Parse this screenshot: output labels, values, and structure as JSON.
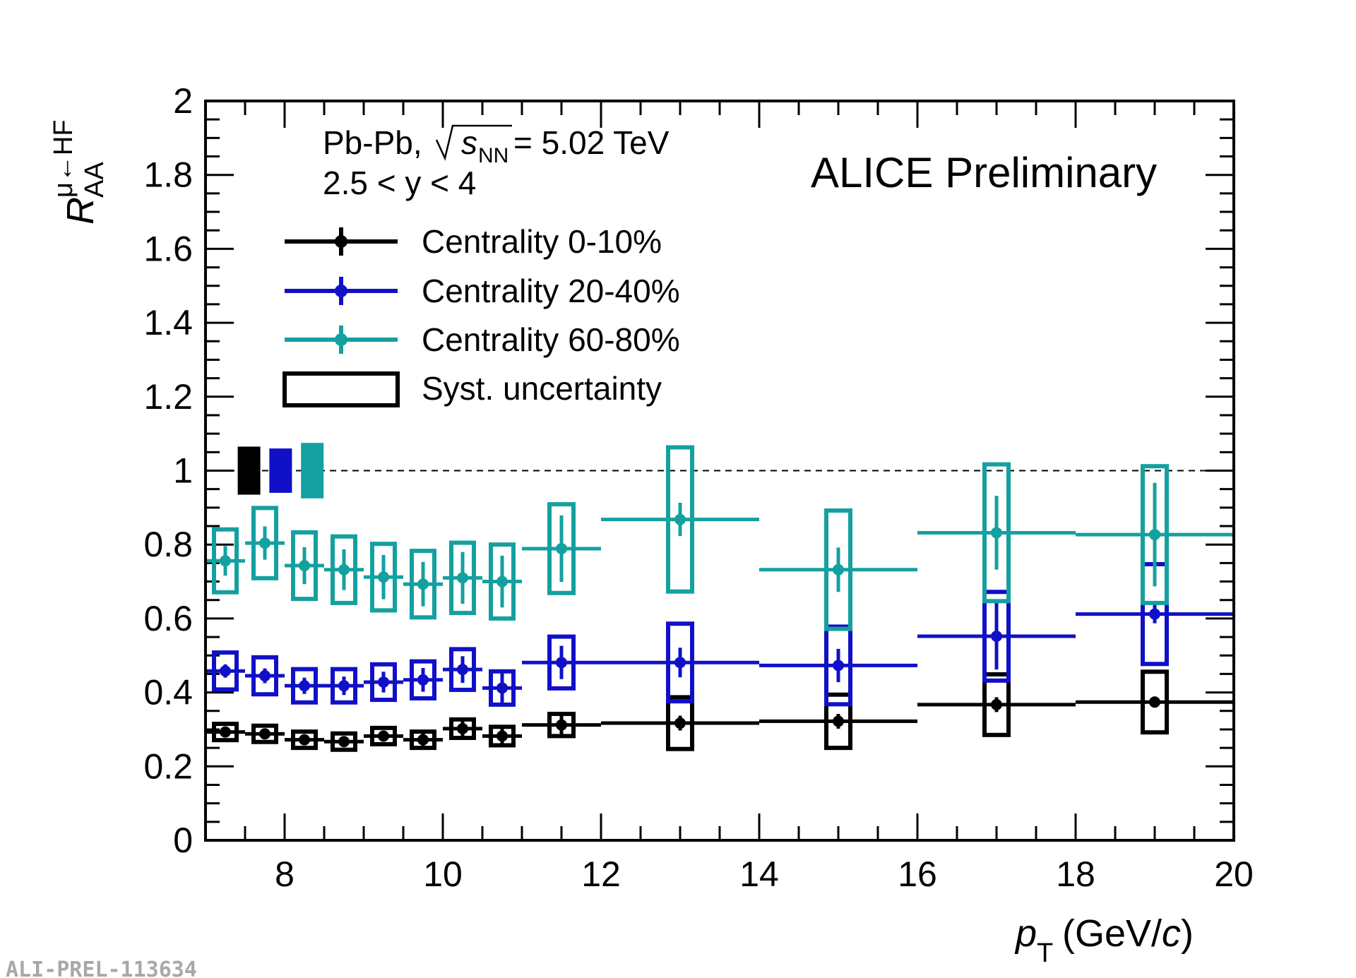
{
  "chart_data": {
    "type": "scatter",
    "title": "",
    "xlabel": {
      "main": "p",
      "sub": "T",
      "unit_open": " (GeV/",
      "unit_var": "c",
      "unit_close": ")"
    },
    "ylabel": {
      "main": "R",
      "sub": "AA",
      "sup": "μ←HF"
    },
    "xlim": [
      7,
      20
    ],
    "ylim": [
      0,
      2
    ],
    "x_ticks": [
      8,
      10,
      12,
      14,
      16,
      18,
      20
    ],
    "y_ticks": [
      0,
      0.2,
      0.4,
      0.6,
      0.8,
      1,
      1.2,
      1.4,
      1.6,
      1.8,
      2
    ],
    "y_tick_labels": [
      "0",
      "0.2",
      "0.4",
      "0.6",
      "0.8",
      "1",
      "1.2",
      "1.4",
      "1.6",
      "1.8",
      "2"
    ],
    "reference_line": 1,
    "series": [
      {
        "name": "Centrality 0-10%",
        "color": "#000000",
        "points": [
          {
            "x": 7.25,
            "xlo": 7.0,
            "xhi": 7.5,
            "y": 0.293,
            "stat": 0.01,
            "syst": 0.022
          },
          {
            "x": 7.75,
            "xlo": 7.5,
            "xhi": 8.0,
            "y": 0.288,
            "stat": 0.01,
            "syst": 0.022
          },
          {
            "x": 8.25,
            "xlo": 8.0,
            "xhi": 8.5,
            "y": 0.272,
            "stat": 0.01,
            "syst": 0.022
          },
          {
            "x": 8.75,
            "xlo": 8.5,
            "xhi": 9.0,
            "y": 0.267,
            "stat": 0.012,
            "syst": 0.022
          },
          {
            "x": 9.25,
            "xlo": 9.0,
            "xhi": 9.5,
            "y": 0.282,
            "stat": 0.015,
            "syst": 0.022
          },
          {
            "x": 9.75,
            "xlo": 9.5,
            "xhi": 10.0,
            "y": 0.272,
            "stat": 0.018,
            "syst": 0.022
          },
          {
            "x": 10.25,
            "xlo": 10.0,
            "xhi": 10.5,
            "y": 0.302,
            "stat": 0.02,
            "syst": 0.025
          },
          {
            "x": 10.75,
            "xlo": 10.5,
            "xhi": 11.0,
            "y": 0.282,
            "stat": 0.022,
            "syst": 0.025
          },
          {
            "x": 11.5,
            "xlo": 11.0,
            "xhi": 12.0,
            "y": 0.312,
            "stat": 0.025,
            "syst": 0.03
          },
          {
            "x": 13.0,
            "xlo": 12.0,
            "xhi": 14.0,
            "y": 0.317,
            "stat": 0.02,
            "syst": 0.07
          },
          {
            "x": 15.0,
            "xlo": 14.0,
            "xhi": 16.0,
            "y": 0.322,
            "stat": 0.02,
            "syst": 0.072
          },
          {
            "x": 17.0,
            "xlo": 16.0,
            "xhi": 18.0,
            "y": 0.367,
            "stat": 0.02,
            "syst": 0.082
          },
          {
            "x": 19.0,
            "xlo": 18.0,
            "xhi": 20.0,
            "y": 0.374,
            "stat": 0.015,
            "syst": 0.082
          }
        ]
      },
      {
        "name": "Centrality 20-40%",
        "color": "#1010c8",
        "points": [
          {
            "x": 7.25,
            "xlo": 7.0,
            "xhi": 7.5,
            "y": 0.458,
            "stat": 0.018,
            "syst": 0.05
          },
          {
            "x": 7.75,
            "xlo": 7.5,
            "xhi": 8.0,
            "y": 0.445,
            "stat": 0.02,
            "syst": 0.05
          },
          {
            "x": 8.25,
            "xlo": 8.0,
            "xhi": 8.5,
            "y": 0.418,
            "stat": 0.022,
            "syst": 0.045
          },
          {
            "x": 8.75,
            "xlo": 8.5,
            "xhi": 9.0,
            "y": 0.418,
            "stat": 0.025,
            "syst": 0.045
          },
          {
            "x": 9.25,
            "xlo": 9.0,
            "xhi": 9.5,
            "y": 0.428,
            "stat": 0.028,
            "syst": 0.048
          },
          {
            "x": 9.75,
            "xlo": 9.5,
            "xhi": 10.0,
            "y": 0.434,
            "stat": 0.032,
            "syst": 0.05
          },
          {
            "x": 10.25,
            "xlo": 10.0,
            "xhi": 10.5,
            "y": 0.462,
            "stat": 0.036,
            "syst": 0.055
          },
          {
            "x": 10.75,
            "xlo": 10.5,
            "xhi": 11.0,
            "y": 0.412,
            "stat": 0.04,
            "syst": 0.045
          },
          {
            "x": 11.5,
            "xlo": 11.0,
            "xhi": 12.0,
            "y": 0.481,
            "stat": 0.045,
            "syst": 0.07
          },
          {
            "x": 13.0,
            "xlo": 12.0,
            "xhi": 14.0,
            "y": 0.481,
            "stat": 0.04,
            "syst": 0.105
          },
          {
            "x": 15.0,
            "xlo": 14.0,
            "xhi": 16.0,
            "y": 0.473,
            "stat": 0.045,
            "syst": 0.105
          },
          {
            "x": 17.0,
            "xlo": 16.0,
            "xhi": 18.0,
            "y": 0.552,
            "stat": 0.09,
            "syst": 0.12
          },
          {
            "x": 19.0,
            "xlo": 18.0,
            "xhi": 20.0,
            "y": 0.612,
            "stat": 0.025,
            "syst": 0.135
          }
        ]
      },
      {
        "name": "Centrality 60-80%",
        "color": "#15a0a0",
        "points": [
          {
            "x": 7.25,
            "xlo": 7.0,
            "xhi": 7.5,
            "y": 0.756,
            "stat": 0.04,
            "syst": 0.085
          },
          {
            "x": 7.75,
            "xlo": 7.5,
            "xhi": 8.0,
            "y": 0.804,
            "stat": 0.045,
            "syst": 0.095
          },
          {
            "x": 8.25,
            "xlo": 8.0,
            "xhi": 8.5,
            "y": 0.743,
            "stat": 0.05,
            "syst": 0.09
          },
          {
            "x": 8.75,
            "xlo": 8.5,
            "xhi": 9.0,
            "y": 0.732,
            "stat": 0.055,
            "syst": 0.09
          },
          {
            "x": 9.25,
            "xlo": 9.0,
            "xhi": 9.5,
            "y": 0.712,
            "stat": 0.06,
            "syst": 0.09
          },
          {
            "x": 9.75,
            "xlo": 9.5,
            "xhi": 10.0,
            "y": 0.693,
            "stat": 0.06,
            "syst": 0.09
          },
          {
            "x": 10.25,
            "xlo": 10.0,
            "xhi": 10.5,
            "y": 0.71,
            "stat": 0.07,
            "syst": 0.095
          },
          {
            "x": 10.75,
            "xlo": 10.5,
            "xhi": 11.0,
            "y": 0.7,
            "stat": 0.07,
            "syst": 0.1
          },
          {
            "x": 11.5,
            "xlo": 11.0,
            "xhi": 12.0,
            "y": 0.789,
            "stat": 0.09,
            "syst": 0.12
          },
          {
            "x": 13.0,
            "xlo": 12.0,
            "xhi": 14.0,
            "y": 0.868,
            "stat": 0.045,
            "syst": 0.195
          },
          {
            "x": 15.0,
            "xlo": 14.0,
            "xhi": 16.0,
            "y": 0.732,
            "stat": 0.06,
            "syst": 0.16
          },
          {
            "x": 17.0,
            "xlo": 16.0,
            "xhi": 18.0,
            "y": 0.832,
            "stat": 0.1,
            "syst": 0.185
          },
          {
            "x": 19.0,
            "xlo": 18.0,
            "xhi": 20.0,
            "y": 0.827,
            "stat": 0.14,
            "syst": 0.185
          }
        ]
      }
    ],
    "normalization_boxes": [
      {
        "series": "Centrality 0-10%",
        "color": "#000000",
        "x": 7.55,
        "half": 0.065
      },
      {
        "series": "Centrality 20-40%",
        "color": "#1010c8",
        "x": 7.95,
        "half": 0.06
      },
      {
        "series": "Centrality 60-80%",
        "color": "#15a0a0",
        "x": 8.35,
        "half": 0.075
      }
    ],
    "legend": {
      "placement": "top-left",
      "entries": [
        {
          "label": "Centrality 0-10%",
          "color": "#000000",
          "kind": "marker"
        },
        {
          "label": "Centrality 20-40%",
          "color": "#1010c8",
          "kind": "marker"
        },
        {
          "label": "Centrality 60-80%",
          "color": "#15a0a0",
          "kind": "marker"
        },
        {
          "label": "Syst. uncertainty",
          "color": "#000000",
          "kind": "box"
        }
      ]
    },
    "annotations": {
      "system": "Pb-Pb,",
      "energy_var": "s",
      "energy_sub": "NN",
      "energy_value": " = 5.02 TeV",
      "rapidity": "2.5 < y < 4",
      "preliminary": "ALICE Preliminary"
    },
    "watermark": "ALI-PREL-113634"
  }
}
